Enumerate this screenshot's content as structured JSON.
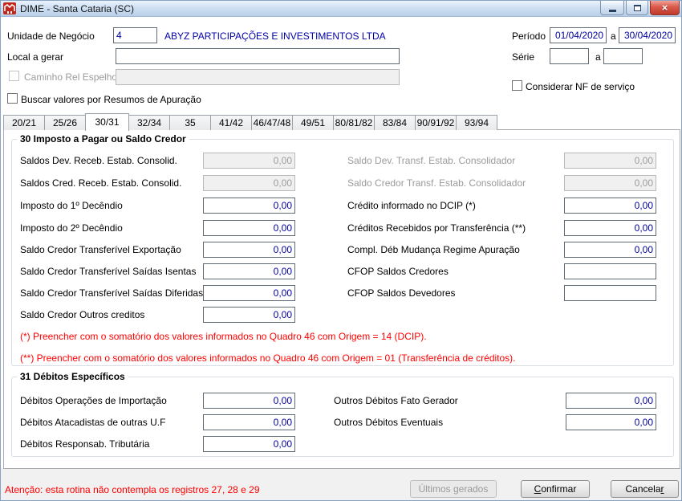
{
  "window": {
    "title": "DIME - Santa Cataria (SC)",
    "close_glyph": "×"
  },
  "colors": {
    "accent_blue": "#0000a0",
    "warning_red": "#ff0000",
    "close_button_red": "#c03a2b",
    "titlebar_blue": "#b9cfe9"
  },
  "header": {
    "unidade_label": "Unidade de Negócio",
    "unidade_value": "4",
    "empresa_nome": "ABYZ PARTICIPAÇÕES E INVESTIMENTOS LTDA",
    "periodo_label": "Período",
    "periodo_de": "01/04/2020",
    "periodo_sep": "a",
    "periodo_ate": "30/04/2020",
    "local_label": "Local a gerar",
    "local_value": "",
    "serie_label": "Série",
    "serie_de": "",
    "serie_sep": "a",
    "serie_ate": "",
    "caminho_label": "Caminho Rel Espelho",
    "caminho_value": "",
    "considerar_nf_label": "Considerar NF de serviço",
    "buscar_label": "Buscar valores por Resumos de Apuração"
  },
  "tabs": [
    "20/21",
    "25/26",
    "30/31",
    "32/34",
    "35",
    "41/42",
    "46/47/48",
    "49/51",
    "80/81/82",
    "83/84",
    "90/91/92",
    "93/94"
  ],
  "active_tab": "30/31",
  "section30": {
    "title": "30 Imposto a Pagar ou Saldo Credor",
    "left": [
      {
        "label": "Saldos Dev. Receb. Estab. Consolid.",
        "value": "0,00"
      },
      {
        "label": "Saldos Cred. Receb. Estab. Consolid.",
        "value": "0,00"
      },
      {
        "label": "Imposto do 1º Decêndio",
        "value": "0,00"
      },
      {
        "label": "Imposto do 2º Decêndio",
        "value": "0,00"
      },
      {
        "label": "Saldo Credor Transferível Exportação",
        "value": "0,00"
      },
      {
        "label": "Saldo Credor Transferível Saídas Isentas",
        "value": "0,00"
      },
      {
        "label": "Saldo Credor Transferível Saídas Diferidas",
        "value": "0,00"
      },
      {
        "label": "Saldo Credor Outros creditos",
        "value": "0,00"
      }
    ],
    "right": [
      {
        "label": "Saldo Dev. Transf. Estab. Consolidador",
        "value": "0,00"
      },
      {
        "label": "Saldo Credor Transf. Estab. Consolidador",
        "value": "0,00"
      },
      {
        "label": "Crédito informado no DCIP (*)",
        "value": "0,00"
      },
      {
        "label": "Créditos Recebidos por Transferência (**)",
        "value": "0,00"
      },
      {
        "label": "Compl. Déb Mudança Regime Apuração",
        "value": "0,00"
      },
      {
        "label": "CFOP Saldos Credores",
        "value": ""
      },
      {
        "label": "CFOP Saldos Devedores",
        "value": ""
      }
    ],
    "footnote1": "(*) Preencher com o somatório dos valores informados no Quadro 46 com Origem = 14 (DCIP).",
    "footnote2": "(**) Preencher com o somatório dos valores informados no Quadro 46 com Origem = 01 (Transferência de créditos)."
  },
  "section31": {
    "title": "31 Débitos Específicos",
    "left": [
      {
        "label": "Débitos Operações de Importação",
        "value": "0,00"
      },
      {
        "label": "Débitos Atacadistas de outras U.F",
        "value": "0,00"
      },
      {
        "label": "Débitos Responsab. Tributária",
        "value": "0,00"
      }
    ],
    "right": [
      {
        "label": "Outros Débitos Fato Gerador",
        "value": "0,00"
      },
      {
        "label": "Outros Débitos Eventuais",
        "value": "0,00"
      }
    ]
  },
  "footer": {
    "warning": "Atenção: esta rotina não contempla os registros 27, 28 e 29",
    "ultimos_label": "Últimos gerados",
    "confirmar_label": "Confirmar",
    "confirmar_accel": 0,
    "cancelar_label": "Cancelar",
    "cancelar_accel": 7
  }
}
